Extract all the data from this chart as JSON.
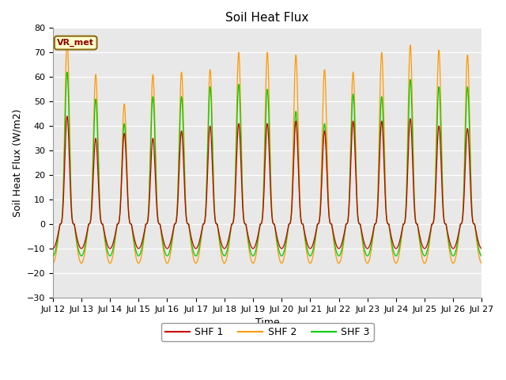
{
  "title": "Soil Heat Flux",
  "xlabel": "Time",
  "ylabel": "Soil Heat Flux (W/m2)",
  "ylim": [
    -30,
    80
  ],
  "yticks": [
    -30,
    -20,
    -10,
    0,
    10,
    20,
    30,
    40,
    50,
    60,
    70,
    80
  ],
  "xtick_labels": [
    "Jul 12",
    "Jul 13",
    "Jul 14",
    "Jul 15",
    "Jul 16",
    "Jul 17",
    "Jul 18",
    "Jul 19",
    "Jul 20",
    "Jul 21",
    "Jul 22",
    "Jul 23",
    "Jul 24",
    "Jul 25",
    "Jul 26",
    "Jul 27"
  ],
  "annotation_text": "VR_met",
  "legend_labels": [
    "SHF 1",
    "SHF 2",
    "SHF 3"
  ],
  "colors": [
    "#cc0000",
    "#ff9900",
    "#00cc00"
  ],
  "background_color": "#ffffff",
  "plot_bg_color": "#e8e8e8",
  "n_points": 7200,
  "days": 15,
  "shf1_day_amp": [
    44,
    35,
    37,
    35,
    38,
    40,
    41,
    41,
    42,
    38,
    42,
    42,
    43,
    40,
    39
  ],
  "shf2_day_amp": [
    75,
    61,
    49,
    61,
    62,
    63,
    70,
    70,
    69,
    63,
    62,
    70,
    73,
    71,
    69
  ],
  "shf3_day_amp": [
    62,
    51,
    41,
    52,
    52,
    56,
    57,
    55,
    46,
    41,
    53,
    52,
    59,
    56,
    56
  ],
  "shf1_night": -10,
  "shf2_night": -16,
  "shf3_night": -13,
  "title_fontsize": 11,
  "label_fontsize": 9,
  "tick_fontsize": 8,
  "peak_sharpness": 4.0
}
